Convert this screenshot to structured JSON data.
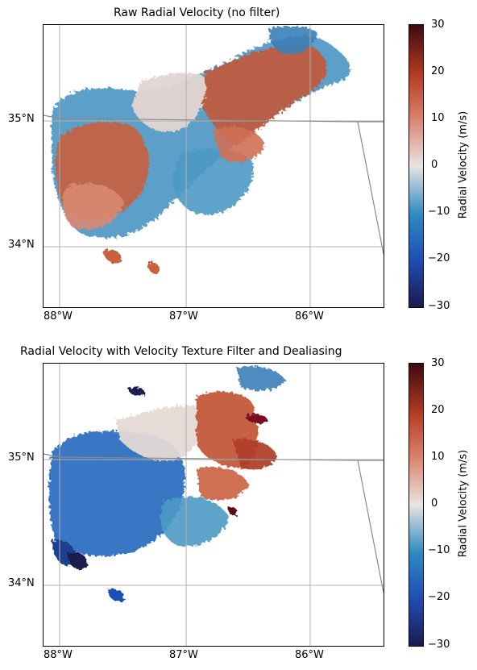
{
  "panels": [
    {
      "title": "Raw Radial Velocity (no filter)",
      "colorbar_label": "Radial Velocity (m/s)"
    },
    {
      "title": "Radial Velocity with Velocity Texture Filter and Dealiasing",
      "colorbar_label": "Radial Velocity (m/s)"
    }
  ],
  "axes": {
    "lon_ticks": [
      "88°W",
      "87°W",
      "86°W"
    ],
    "lat_ticks": [
      "35°N",
      "34°N"
    ],
    "colorbar_ticks": [
      "30",
      "20",
      "10",
      "0",
      "−10",
      "−20",
      "−30"
    ]
  },
  "colormap": {
    "name": "balance",
    "stops": [
      "#1a1a4e",
      "#1f4fb5",
      "#2e8bc0",
      "#e8e4e2",
      "#d9826b",
      "#b03a20",
      "#3d0a10"
    ],
    "range": [
      -30,
      30
    ]
  },
  "colors": {
    "gridline": "#b0b0b0",
    "border": "#8a8a8a"
  }
}
